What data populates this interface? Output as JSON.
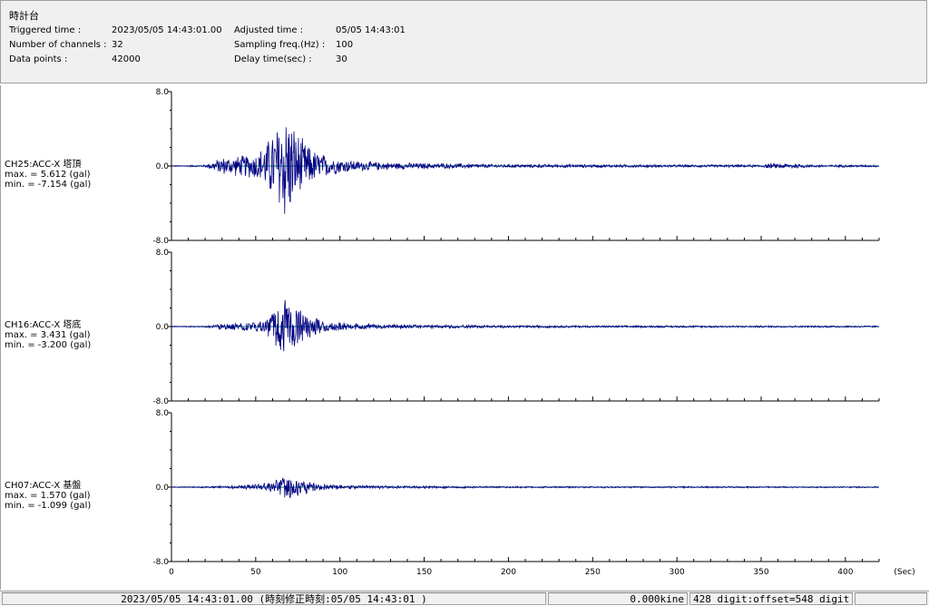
{
  "header": {
    "title": "時計台",
    "triggered_label": "Triggered time :",
    "triggered_value": "2023/05/05 14:43:01.00",
    "channels_label": "Number of channels :",
    "channels_value": "32",
    "datapoints_label": "Data points :",
    "datapoints_value": "42000",
    "adjusted_label": "Adjusted time :",
    "adjusted_value": "05/05 14:43:01",
    "sampling_label": "Sampling freq.(Hz) :",
    "sampling_value": "100",
    "delay_label": "Delay time(sec) :",
    "delay_value": "30"
  },
  "status": {
    "time": "2023/05/05 14:43:01.00  (時刻修正時刻:05/05 14:43:01  )",
    "kine": "0.000kine",
    "digit": "428 digit:offset=548 digit"
  },
  "colors": {
    "trace": "#000080",
    "axis": "#000000",
    "zero_line": "#008080"
  },
  "chart_data": {
    "type": "line",
    "x_unit": "(Sec)",
    "xlim": [
      0,
      420
    ],
    "x_ticks": [
      "0",
      "50",
      "100",
      "150",
      "200",
      "250",
      "300",
      "350",
      "400"
    ],
    "x_tick_values": [
      0,
      50,
      100,
      150,
      200,
      250,
      300,
      350,
      400
    ],
    "channels": [
      {
        "name": "CH25:ACC-X 塔頂",
        "max_text": "max. = 5.612 (gal)",
        "min_text": "min. = -7.154 (gal)",
        "max": 5.612,
        "min": -7.154,
        "ylim": [
          -8.0,
          8.0
        ],
        "y_tick_labels": [
          "8.0",
          "0.0",
          "-8.0"
        ],
        "envelope": [
          [
            0,
            0.05
          ],
          [
            20,
            0.12
          ],
          [
            25,
            0.6
          ],
          [
            30,
            1.0
          ],
          [
            40,
            1.2
          ],
          [
            50,
            1.5
          ],
          [
            55,
            2.4
          ],
          [
            60,
            4.0
          ],
          [
            65,
            5.6
          ],
          [
            68,
            7.0
          ],
          [
            72,
            5.0
          ],
          [
            78,
            3.0
          ],
          [
            85,
            1.8
          ],
          [
            95,
            1.0
          ],
          [
            110,
            0.6
          ],
          [
            130,
            0.4
          ],
          [
            160,
            0.3
          ],
          [
            200,
            0.2
          ],
          [
            300,
            0.15
          ],
          [
            350,
            0.15
          ],
          [
            355,
            0.3
          ],
          [
            370,
            0.3
          ],
          [
            380,
            0.15
          ],
          [
            420,
            0.12
          ]
        ]
      },
      {
        "name": "CH16:ACC-X 塔底",
        "max_text": "max. = 3.431 (gal)",
        "min_text": "min. = -3.200 (gal)",
        "max": 3.431,
        "min": -3.2,
        "ylim": [
          -8.0,
          8.0
        ],
        "y_tick_labels": [
          "8.0",
          "0.0",
          "-8.0"
        ],
        "envelope": [
          [
            0,
            0.05
          ],
          [
            20,
            0.08
          ],
          [
            25,
            0.3
          ],
          [
            40,
            0.5
          ],
          [
            55,
            0.8
          ],
          [
            60,
            1.6
          ],
          [
            65,
            2.8
          ],
          [
            70,
            3.4
          ],
          [
            75,
            2.6
          ],
          [
            80,
            1.4
          ],
          [
            90,
            0.7
          ],
          [
            110,
            0.35
          ],
          [
            150,
            0.2
          ],
          [
            250,
            0.12
          ],
          [
            420,
            0.1
          ]
        ]
      },
      {
        "name": "CH07:ACC-X 基盤",
        "max_text": "max. = 1.570 (gal)",
        "min_text": "min. = -1.099 (gal)",
        "max": 1.57,
        "min": -1.099,
        "ylim": [
          -8.0,
          8.0
        ],
        "y_tick_labels": [
          "8.0",
          "0.0",
          "-8.0"
        ],
        "envelope": [
          [
            0,
            0.04
          ],
          [
            25,
            0.1
          ],
          [
            40,
            0.2
          ],
          [
            55,
            0.4
          ],
          [
            62,
            1.0
          ],
          [
            68,
            1.5
          ],
          [
            75,
            1.0
          ],
          [
            85,
            0.5
          ],
          [
            100,
            0.25
          ],
          [
            130,
            0.15
          ],
          [
            200,
            0.1
          ],
          [
            420,
            0.08
          ]
        ]
      }
    ]
  }
}
